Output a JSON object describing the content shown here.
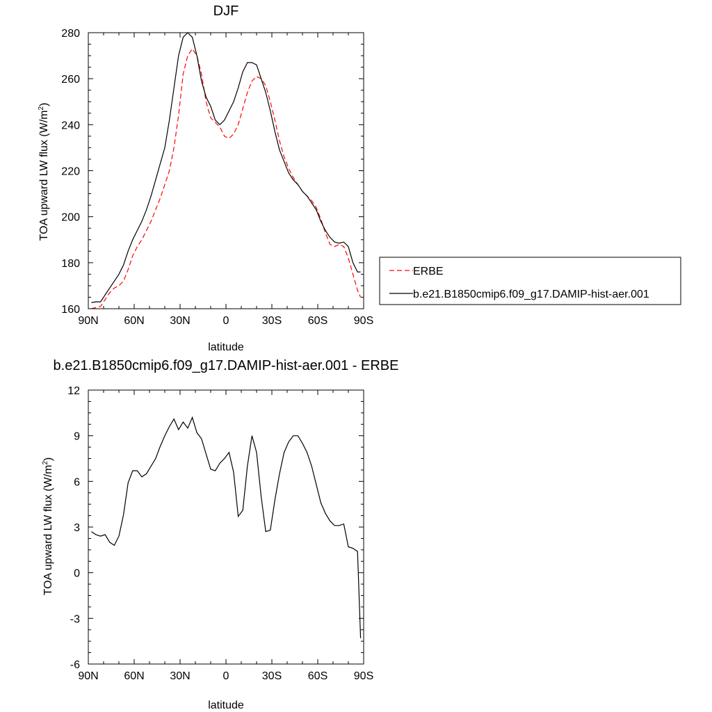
{
  "chart_data": [
    {
      "type": "line",
      "title": "DJF",
      "xlabel": "latitude",
      "ylabel": "TOA upward LW flux (W/m",
      "ylabel_sup": "2",
      "ylabel_end": ")",
      "xlim": [
        -90,
        90
      ],
      "ylim": [
        160,
        280
      ],
      "xticks": [
        {
          "value": -90,
          "label": "90N"
        },
        {
          "value": -60,
          "label": "60N"
        },
        {
          "value": -30,
          "label": "30N"
        },
        {
          "value": 0,
          "label": "0"
        },
        {
          "value": 30,
          "label": "30S"
        },
        {
          "value": 60,
          "label": "60S"
        },
        {
          "value": 90,
          "label": "90S"
        }
      ],
      "yticks": [
        160,
        180,
        200,
        220,
        240,
        260,
        280
      ],
      "legend": "right",
      "series": [
        {
          "name": "ERBE",
          "color": "#ff0000",
          "dash": true,
          "x": [
            -88,
            -85,
            -82,
            -79,
            -76,
            -73,
            -70,
            -67,
            -64,
            -61,
            -58,
            -55,
            -52,
            -49,
            -46,
            -43,
            -40,
            -37,
            -34,
            -31,
            -28,
            -25,
            -22,
            -19,
            -16,
            -13,
            -10,
            -7,
            -4,
            -1,
            2,
            5,
            8,
            11,
            14,
            17,
            20,
            23,
            26,
            29,
            32,
            35,
            38,
            41,
            44,
            47,
            50,
            53,
            56,
            59,
            62,
            65,
            68,
            71,
            74,
            77,
            80,
            83,
            86,
            88
          ],
          "y": [
            160,
            160.5,
            161,
            164,
            167,
            169,
            170,
            172,
            177,
            183,
            187,
            190,
            194,
            198,
            203,
            208,
            214,
            220,
            230,
            244,
            262,
            270,
            273,
            270,
            262,
            250,
            243,
            241,
            239,
            235,
            234,
            236,
            240,
            247,
            254,
            259,
            261,
            260,
            257,
            250,
            242,
            233,
            226,
            221,
            217,
            214,
            211,
            209,
            207,
            204,
            199,
            193,
            188,
            187,
            188,
            187,
            182,
            175,
            168,
            165
          ]
        },
        {
          "name": "b.e21.B1850cmip6.f09_g17.DAMIP-hist-aer.001",
          "color": "#000000",
          "dash": false,
          "x": [
            -88,
            -85,
            -82,
            -79,
            -76,
            -73,
            -70,
            -67,
            -64,
            -61,
            -58,
            -55,
            -52,
            -49,
            -46,
            -43,
            -40,
            -37,
            -34,
            -31,
            -28,
            -25,
            -22,
            -19,
            -16,
            -13,
            -10,
            -7,
            -4,
            -1,
            2,
            5,
            8,
            11,
            14,
            17,
            20,
            23,
            26,
            29,
            32,
            35,
            38,
            41,
            44,
            47,
            50,
            53,
            56,
            59,
            62,
            65,
            68,
            71,
            74,
            77,
            80,
            83,
            86,
            88
          ],
          "y": [
            162.7,
            163,
            163,
            166,
            169,
            172,
            175,
            179,
            185,
            190,
            194,
            198,
            203,
            209,
            216,
            223,
            230,
            242,
            256,
            270,
            278,
            280,
            278,
            270,
            259,
            252,
            248,
            242,
            240,
            242,
            246,
            250,
            256,
            263,
            267,
            267,
            266,
            260,
            254,
            246,
            237,
            229,
            224,
            219,
            216,
            214,
            211,
            209,
            206,
            203,
            198,
            194,
            191,
            189,
            188.5,
            189,
            187,
            180,
            176,
            176
          ]
        }
      ]
    },
    {
      "type": "line",
      "title": "b.e21.B1850cmip6.f09_g17.DAMIP-hist-aer.001 - ERBE",
      "xlabel": "latitude",
      "ylabel": "TOA upward LW flux (W/m",
      "ylabel_sup": "2",
      "ylabel_end": ")",
      "xlim": [
        -90,
        90
      ],
      "ylim": [
        -6,
        12
      ],
      "xticks": [
        {
          "value": -90,
          "label": "90N"
        },
        {
          "value": -60,
          "label": "60N"
        },
        {
          "value": -30,
          "label": "30N"
        },
        {
          "value": 0,
          "label": "0"
        },
        {
          "value": 30,
          "label": "30S"
        },
        {
          "value": 60,
          "label": "60S"
        },
        {
          "value": 90,
          "label": "90S"
        }
      ],
      "yticks": [
        -6,
        -3,
        0,
        3,
        6,
        9,
        12
      ],
      "series": [
        {
          "color": "#000000",
          "dash": false,
          "x": [
            -88,
            -85,
            -82,
            -79,
            -76,
            -73,
            -70,
            -67,
            -64,
            -61,
            -58,
            -55,
            -52,
            -49,
            -46,
            -43,
            -40,
            -37,
            -34,
            -31,
            -28,
            -25,
            -22,
            -19,
            -16,
            -13,
            -10,
            -7,
            -4,
            -1,
            2,
            5,
            8,
            11,
            14,
            17,
            20,
            23,
            26,
            29,
            32,
            35,
            38,
            41,
            44,
            47,
            50,
            53,
            56,
            59,
            62,
            65,
            68,
            71,
            74,
            77,
            80,
            83,
            86,
            88
          ],
          "y": [
            2.7,
            2.5,
            2.4,
            2.5,
            2.0,
            1.8,
            2.4,
            3.8,
            5.9,
            6.7,
            6.7,
            6.3,
            6.5,
            7.0,
            7.5,
            8.3,
            9.0,
            9.6,
            10.1,
            9.4,
            9.9,
            9.5,
            10.2,
            9.2,
            8.8,
            7.8,
            6.8,
            6.7,
            7.2,
            7.5,
            7.9,
            6.6,
            3.7,
            4.1,
            7.0,
            9.0,
            7.9,
            5.0,
            2.7,
            2.8,
            4.8,
            6.5,
            7.9,
            8.6,
            9.0,
            9.0,
            8.5,
            7.9,
            7.0,
            5.8,
            4.6,
            3.9,
            3.4,
            3.1,
            3.1,
            3.2,
            1.7,
            1.6,
            1.4,
            -4.3
          ]
        }
      ]
    }
  ]
}
